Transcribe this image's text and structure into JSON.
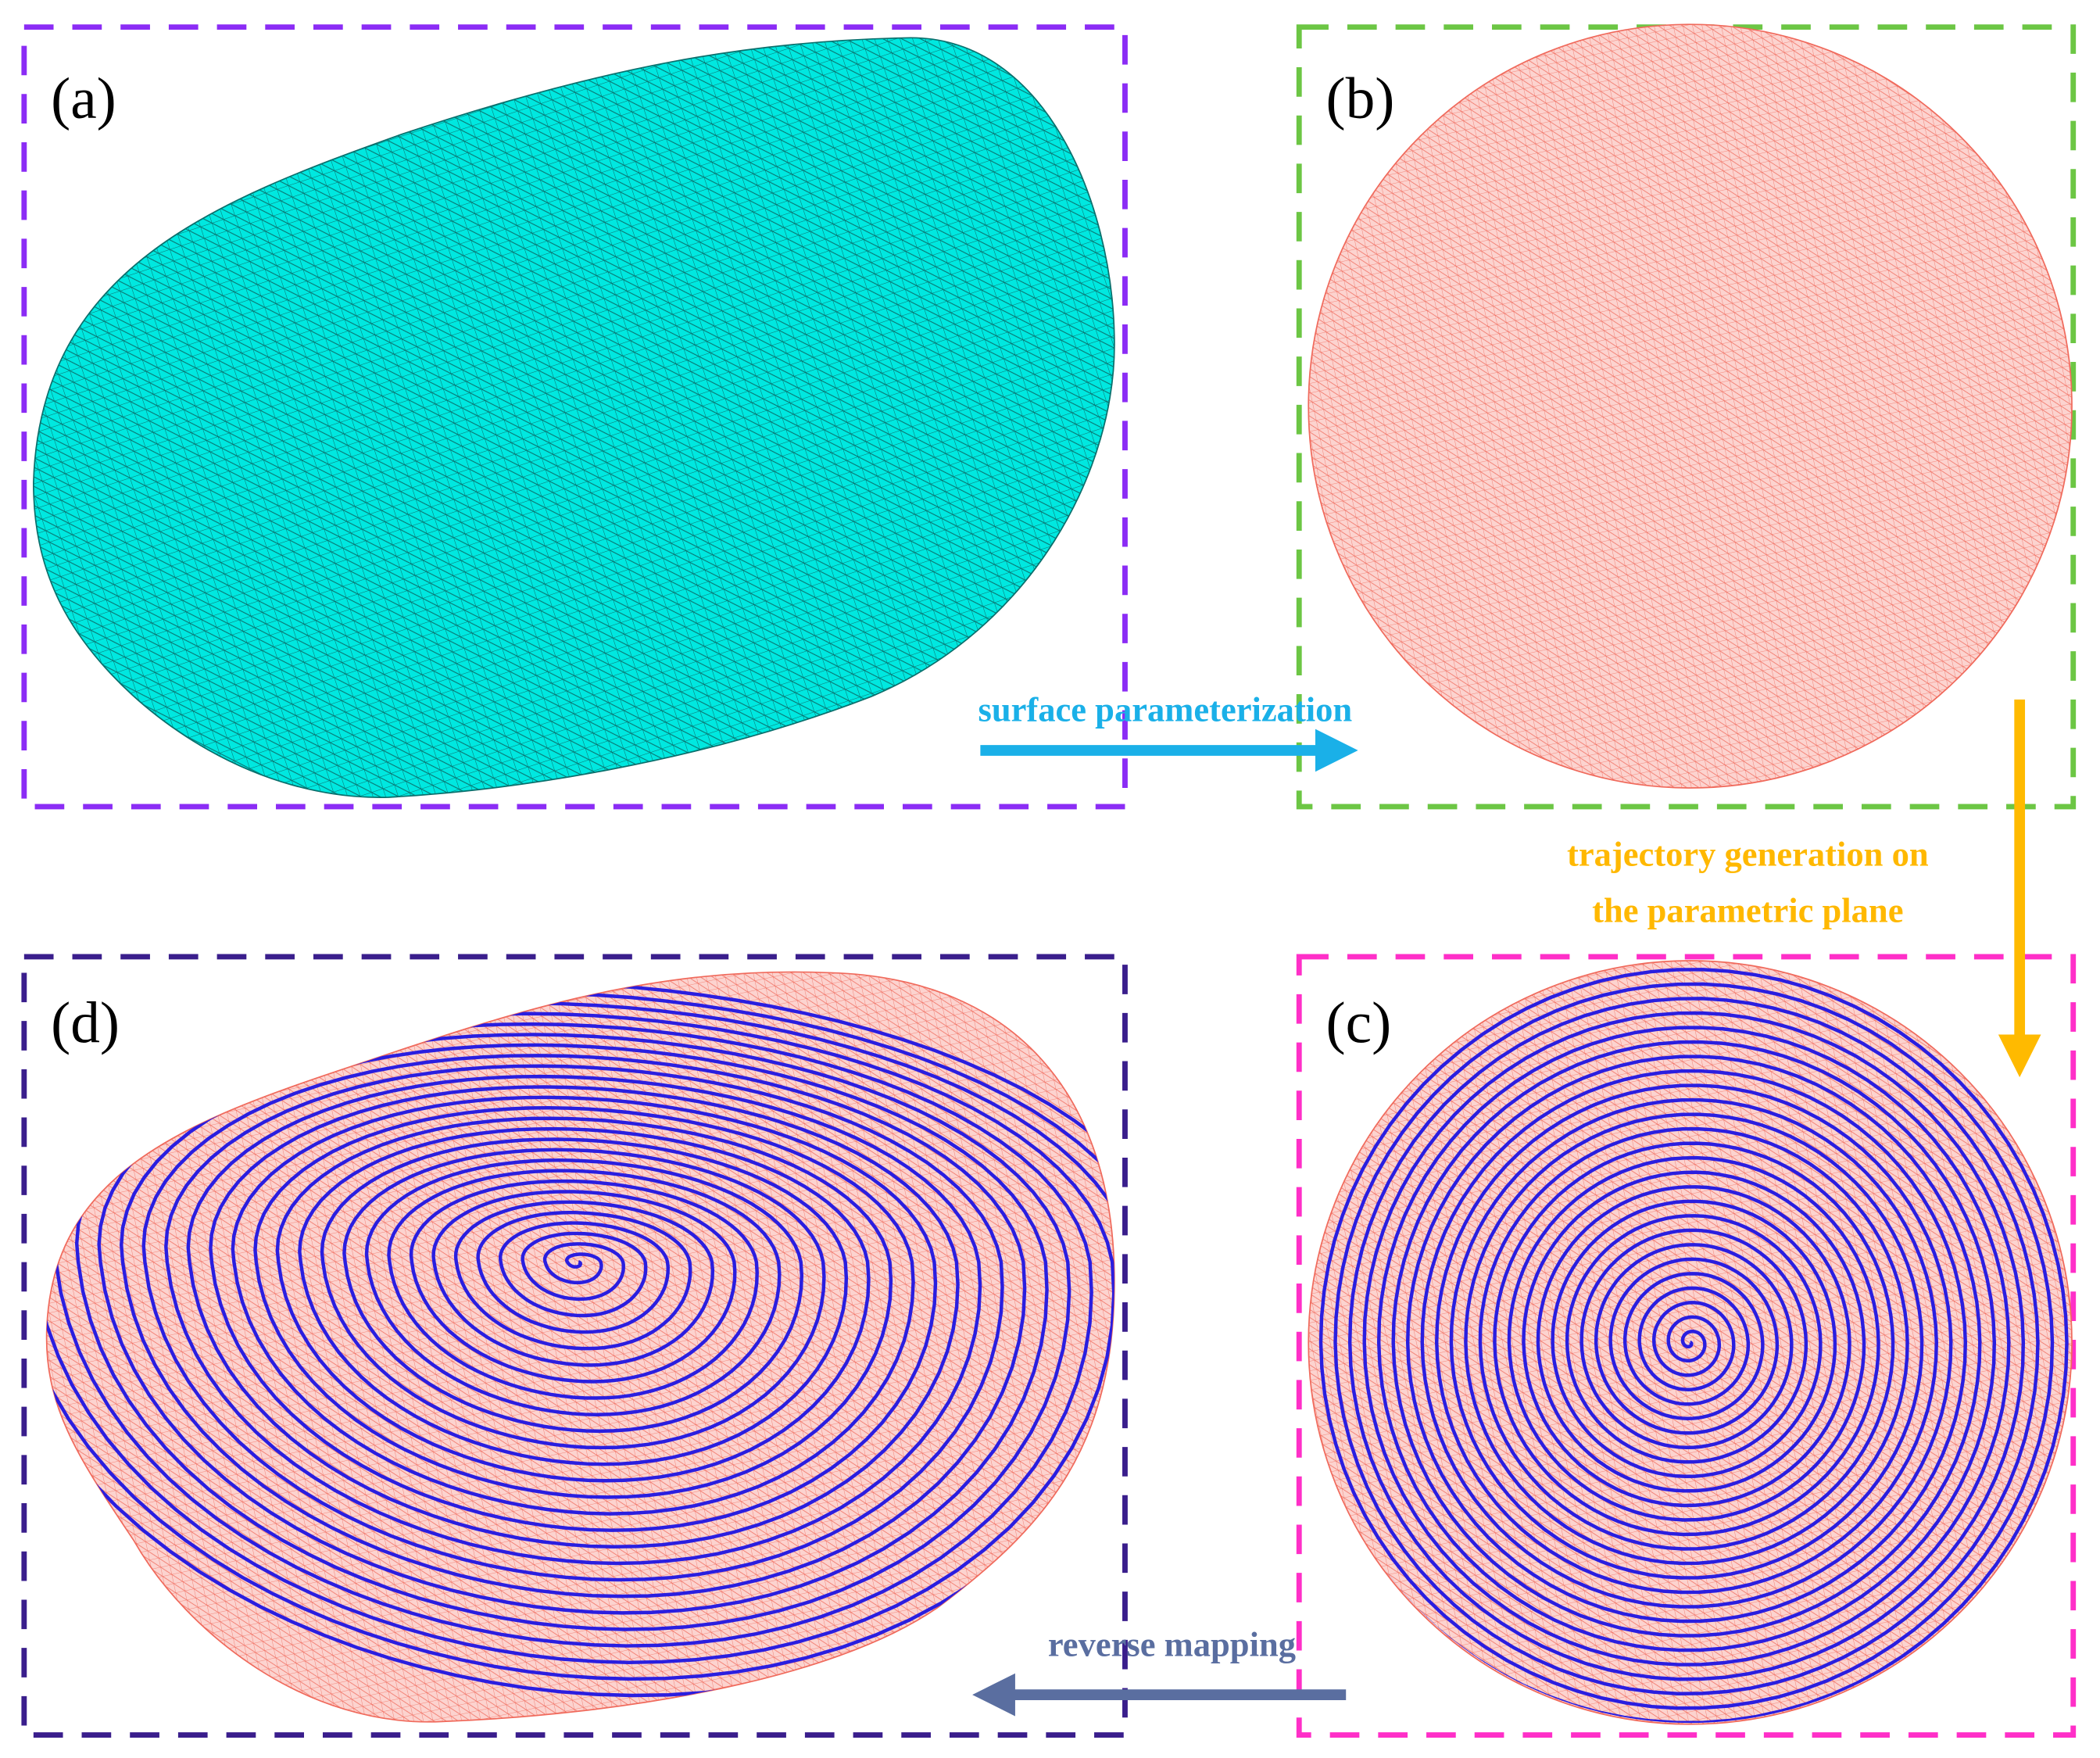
{
  "panels": [
    {
      "label": "(a)"
    },
    {
      "label": "(b)"
    },
    {
      "label": "(c)"
    },
    {
      "label": "(d)"
    }
  ],
  "arrows": [
    {
      "label": "surface parameterization"
    },
    {
      "lines": [
        "trajectory generation on",
        "the parametric plane"
      ]
    },
    {
      "label": "reverse mapping"
    }
  ]
}
